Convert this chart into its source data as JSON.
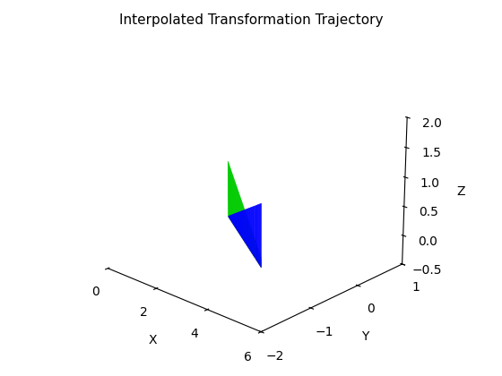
{
  "title": "Interpolated Transformation Trajectory",
  "xlabel": "X",
  "ylabel": "Y",
  "zlabel": "Z",
  "xlim": [
    0,
    6
  ],
  "ylim": [
    -2,
    1
  ],
  "zlim": [
    -0.5,
    2
  ],
  "n_steps": 100,
  "red_color": "#ff0000",
  "green_color": "#00cc00",
  "blue_color": "#0000ff",
  "elev": 22,
  "azim": -47,
  "figwidth": 5.6,
  "figheight": 4.2,
  "dpi": 100,
  "lw": 0.6
}
